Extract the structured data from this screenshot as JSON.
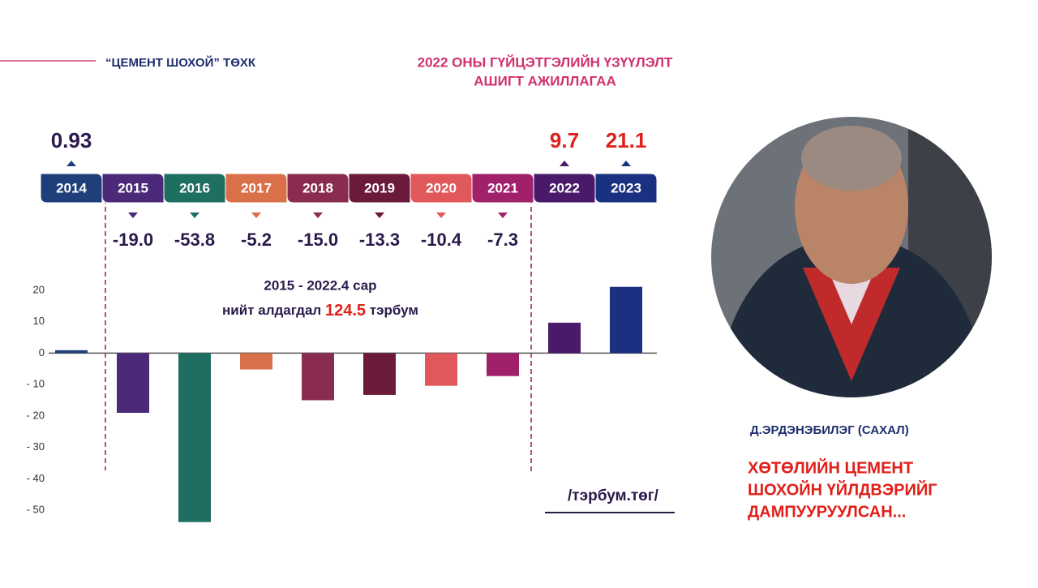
{
  "header": {
    "company": "“ЦЕМЕНТ ШОХОЙ” ТӨХК"
  },
  "chart_data": {
    "type": "bar",
    "title": [
      "2022 ОНЫ ГҮЙЦЭТГЭЛИЙН ҮЗҮҮЛЭЛТ",
      "АШИГТ АЖИЛЛАГАА"
    ],
    "categories": [
      "2014",
      "2015",
      "2016",
      "2017",
      "2018",
      "2019",
      "2020",
      "2021",
      "2022",
      "2023"
    ],
    "values": [
      0.93,
      -19.0,
      -53.8,
      -5.2,
      -15.0,
      -13.3,
      -10.4,
      -7.3,
      9.7,
      21.1
    ],
    "value_labels": [
      "0.93",
      "-19.0",
      "-53.8",
      "-5.2",
      "-15.0",
      "-13.3",
      "-10.4",
      "-7.3",
      "9.7",
      "21.1"
    ],
    "colors": [
      "#1f3f7a",
      "#4b2a7a",
      "#1f6e62",
      "#d9704a",
      "#8a2c4f",
      "#6b1a3a",
      "#e0585a",
      "#a0206a",
      "#4a1a6a",
      "#1a3080"
    ],
    "value_label_colors": [
      "#2a1a4a",
      "#2a1a4a",
      "#2a1a4a",
      "#2a1a4a",
      "#2a1a4a",
      "#2a1a4a",
      "#2a1a4a",
      "#2a1a4a",
      "#e0201a",
      "#e0201a"
    ],
    "ylim": [
      -55,
      25
    ],
    "yticks": [
      20,
      10,
      0,
      {
        "value": -10,
        "label": "- 10"
      },
      {
        "value": -20,
        "label": "- 20"
      },
      {
        "value": -30,
        "label": "- 30"
      },
      {
        "value": -40,
        "label": "- 40"
      },
      {
        "value": -50,
        "label": "- 50"
      }
    ],
    "annotation": {
      "line1": "2015 - 2022.4 сар",
      "line2": "нийт алдагдал",
      "highlight": "124.5",
      "suffix": "тэрбум"
    },
    "unit": "/тэрбум.төг/"
  },
  "person": {
    "name": "Д.ЭРДЭНЭБИЛЭГ (САХАЛ)",
    "caption": [
      "ХӨТӨЛИЙН ЦЕМЕНТ",
      "ШОХОЙН ҮЙЛДВЭРИЙГ",
      "ДАМПУУРУУЛСАН..."
    ]
  }
}
